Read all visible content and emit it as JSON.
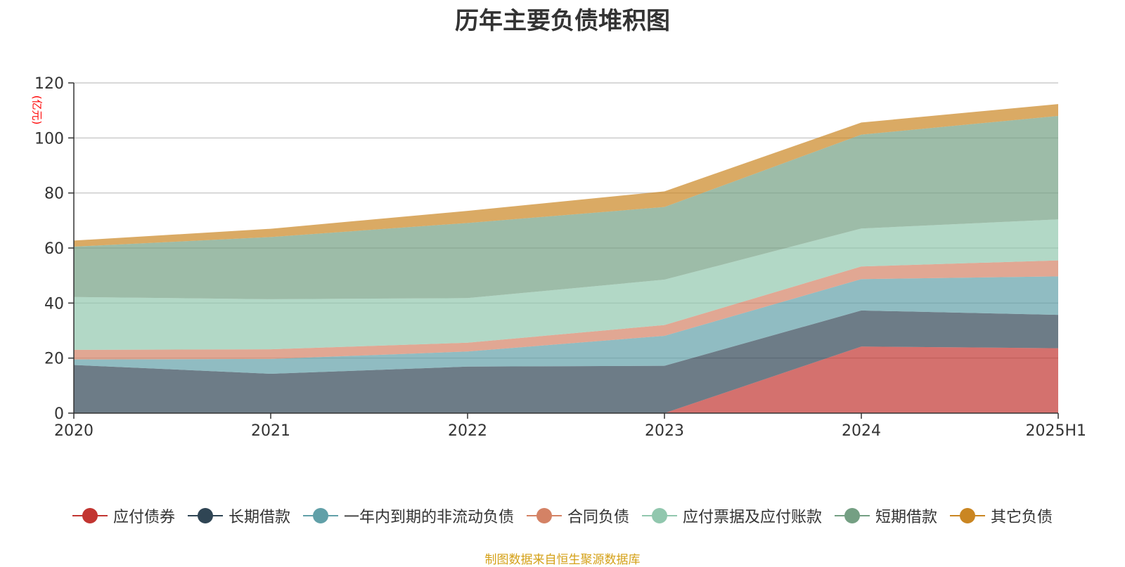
{
  "chart_data": {
    "type": "area",
    "stacked": true,
    "title": "历年主要负债堆积图",
    "unit_label": "(亿元)",
    "categories": [
      "2020",
      "2021",
      "2022",
      "2023",
      "2024",
      "2025H1"
    ],
    "y_ticks": [
      "0",
      "20",
      "40",
      "60",
      "80",
      "100",
      "120"
    ],
    "ylim": [
      0,
      120
    ],
    "grid": true,
    "legend_position": "bottom",
    "series": [
      {
        "name": "应付债券",
        "color": "#c23531",
        "values": [
          0,
          0,
          0,
          0,
          24.2,
          23.6
        ]
      },
      {
        "name": "长期借款",
        "color": "#2f4554",
        "values": [
          17.5,
          14.3,
          16.9,
          17.2,
          13.1,
          12.1
        ]
      },
      {
        "name": "一年内到期的非流动负债",
        "color": "#61a0a8",
        "values": [
          2.0,
          5.4,
          5.5,
          10.9,
          11.4,
          14.0
        ]
      },
      {
        "name": "合同负债",
        "color": "#d48265",
        "values": [
          3.5,
          3.5,
          3.2,
          3.9,
          4.6,
          5.8
        ]
      },
      {
        "name": "应付票据及应付账款",
        "color": "#91c7ae",
        "values": [
          19.2,
          18.2,
          16.2,
          16.5,
          13.8,
          14.9
        ]
      },
      {
        "name": "短期借款",
        "color": "#749f83",
        "values": [
          18.3,
          22.6,
          27.3,
          26.4,
          34.1,
          37.6
        ]
      },
      {
        "name": "其它负债",
        "color": "#ca8622",
        "values": [
          2.2,
          3.0,
          4.4,
          5.7,
          4.4,
          4.3
        ]
      }
    ]
  },
  "footer": "制图数据来自恒生聚源数据库"
}
